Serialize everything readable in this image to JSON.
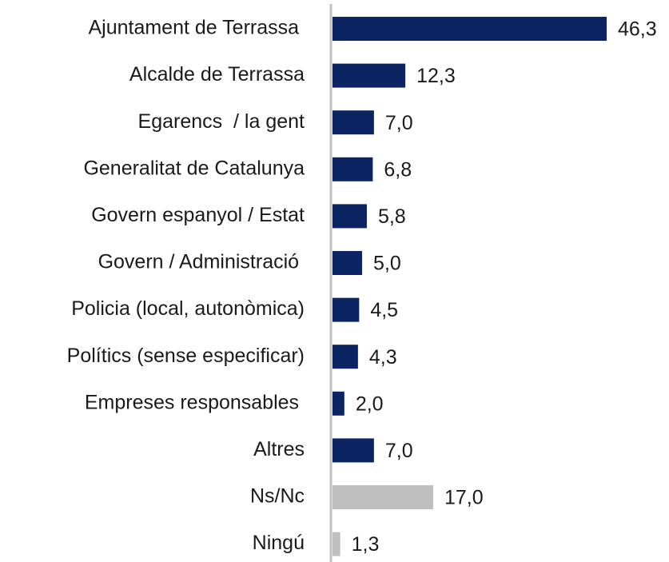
{
  "chart_data": {
    "type": "barh",
    "categories": [
      "Ajuntament de Terrassa ",
      "Alcalde de Terrassa",
      "Egarencs  / la gent",
      "Generalitat de Catalunya",
      "Govern espanyol / Estat",
      "Govern / Administració ",
      "Policia (local, autonòmica)",
      "Polítics (sense especificar)",
      "Empreses responsables ",
      "Altres",
      "Ns/Nc",
      "Ningú"
    ],
    "values": [
      46.3,
      12.3,
      7.0,
      6.8,
      5.8,
      5.0,
      4.5,
      4.3,
      2.0,
      7.0,
      17.0,
      1.3
    ],
    "value_labels": [
      "46,3",
      "12,3",
      "7,0",
      "6,8",
      "5,8",
      "5,0",
      "4,5",
      "4,3",
      "2,0",
      "7,0",
      "17,0",
      "1,3"
    ],
    "colors": [
      "#0c2461",
      "#0c2461",
      "#0c2461",
      "#0c2461",
      "#0c2461",
      "#0c2461",
      "#0c2461",
      "#0c2461",
      "#0c2461",
      "#0c2461",
      "#bfbfbf",
      "#bfbfbf"
    ]
  }
}
